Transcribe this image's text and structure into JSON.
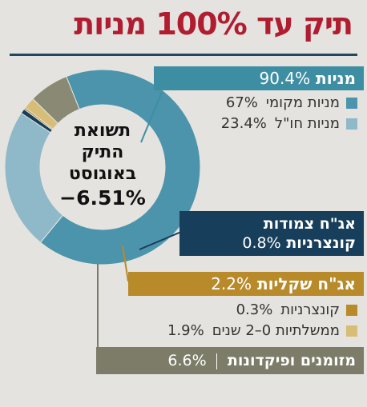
{
  "title": "תיק עד 100% מניות",
  "center": {
    "label_lines": [
      "תשואת",
      "התיק",
      "באוגוסט"
    ],
    "value": "−6.51%"
  },
  "groups": {
    "stocks": {
      "name": "מניות",
      "value": "90.4%"
    },
    "conv": {
      "name_line1": "אג\"ח צמודות",
      "name_line2": "קונצרניות",
      "value": "0.8%"
    },
    "shekel": {
      "name": "אג\"ח שקליות",
      "value": "2.2%"
    },
    "cash": {
      "name": "מזומנים ופיקדונות",
      "value": "6.6%"
    }
  },
  "legend": {
    "local": {
      "name": "מניות מקומי",
      "value": "67%"
    },
    "foreign": {
      "name": "מניות חו\"ל",
      "value": "23.4%"
    },
    "corp": {
      "name": "קונצרניות",
      "value": "0.3%"
    },
    "gov": {
      "name": "ממשלתיות 0–2 שנים",
      "value": "1.9%"
    }
  },
  "chart_data": {
    "type": "pie",
    "title": "תיק עד 100% מניות",
    "center_text": "תשואת התיק באוגוסט −6.51%",
    "slices": [
      {
        "label": "מניות מקומי",
        "value": 67,
        "color": "#4b94ab"
      },
      {
        "label": "מניות חו\"ל",
        "value": 23.4,
        "color": "#8fb9c8"
      },
      {
        "label": "אג\"ח צמודות קונצרניות",
        "value": 0.8,
        "color": "#173e5a"
      },
      {
        "label": "קונצרניות",
        "value": 0.3,
        "color": "#b88a2a"
      },
      {
        "label": "ממשלתיות 0–2 שנים",
        "value": 1.9,
        "color": "#d8bd76"
      },
      {
        "label": "מזומנים ופיקדונות",
        "value": 6.6,
        "color": "#8a8a74"
      }
    ]
  }
}
